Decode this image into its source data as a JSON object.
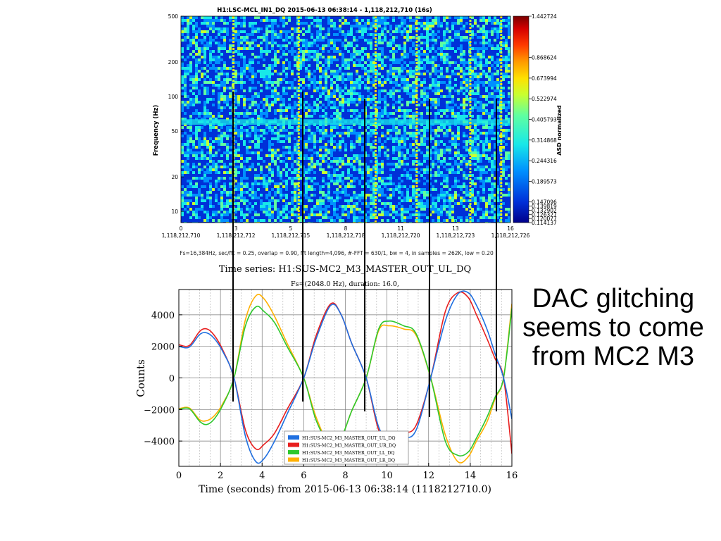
{
  "colors": {
    "series_ul": "#1f6fe0",
    "series_ur": "#e81e1e",
    "series_ll": "#2ec82e",
    "series_lr": "#ffb000",
    "marker_lines": "#000000"
  },
  "annotation": {
    "lines": [
      "DAC glitching",
      "seems to come",
      "from MC2 M3"
    ]
  },
  "chart_data": [
    {
      "type": "heatmap",
      "title": "H1:LSC-MCL_IN1_DQ 2015-06-13 06:38:14 - 1,118,212,710 (16s)",
      "ylabel": "Frequency (Hz)",
      "yscale": "log",
      "ylim": [
        8,
        500
      ],
      "y_ticks": [
        {
          "value": 10,
          "label": "10"
        },
        {
          "value": 20,
          "label": "20"
        },
        {
          "value": 50,
          "label": "50"
        },
        {
          "value": 100,
          "label": "100"
        },
        {
          "value": 200,
          "label": "200"
        },
        {
          "value": 500,
          "label": "500"
        }
      ],
      "xlim": [
        0,
        16
      ],
      "x_ticks": [
        {
          "value": 0,
          "top": "0",
          "bottom": "1,118,212,710"
        },
        {
          "value": 2.67,
          "top": "3",
          "bottom": "1,118,212,712"
        },
        {
          "value": 5.33,
          "top": "5",
          "bottom": "1,118,212,715"
        },
        {
          "value": 8,
          "top": "8",
          "bottom": "1,118,212,718"
        },
        {
          "value": 10.67,
          "top": "11",
          "bottom": "1,118,212,720"
        },
        {
          "value": 13.33,
          "top": "13",
          "bottom": "1,118,212,723"
        },
        {
          "value": 16,
          "top": "16",
          "bottom": "1,118,212,726"
        }
      ],
      "caption": "Fs=16,384Hz, sec/fft = 0.25, overlap = 0.90, fft length=4,096, #-FFT = 630/1, bw = 4, in samples = 262K, low = 0.20",
      "colorbar": {
        "label": "ASD normalized",
        "ticks": [
          "1.442724",
          "0.868624",
          "0.673994",
          "0.522974",
          "0.405793",
          "0.314868",
          "0.244316",
          "0.189573",
          "0.147096",
          "0.139819",
          "0.132902",
          "0.126327",
          "0.120077",
          "0.114137"
        ],
        "colors": [
          "#7a0000",
          "#d40000",
          "#ff3a00",
          "#ff9a00",
          "#ffe000",
          "#c8ff30",
          "#60ffa0",
          "#18e8e8",
          "#0090ff",
          "#0030d8",
          "#00008a"
        ]
      },
      "glitch_times": [
        2.55,
        5.72,
        9.45,
        11.45,
        14.05,
        15.55
      ]
    },
    {
      "type": "line",
      "title": "Time series: H1:SUS-MC2_M3_MASTER_OUT_UL_DQ",
      "subtitle": "Fs=(2048.0 Hz), duration: 16.0,",
      "xlabel": "Time (seconds) from 2015-06-13 06:38:14 (1118212710.0)",
      "ylabel": "Counts",
      "xlim": [
        0,
        16
      ],
      "ylim": [
        -5600,
        5600
      ],
      "x_ticks": [
        0,
        2,
        4,
        6,
        8,
        10,
        12,
        14,
        16
      ],
      "y_ticks": [
        -4000,
        -2000,
        0,
        2000,
        4000
      ],
      "grid": true,
      "legend_position": "bottom-center",
      "x": [
        0,
        0.5,
        1,
        1.35,
        1.7,
        2.1,
        2.65,
        3.2,
        3.7,
        4.1,
        4.6,
        5.2,
        6.0,
        6.6,
        7.3,
        7.8,
        8.3,
        9.0,
        9.6,
        10.1,
        10.8,
        11.4,
        12.1,
        12.8,
        13.4,
        13.9,
        14.3,
        14.8,
        15.2,
        15.6,
        16
      ],
      "series": [
        {
          "name": "H1:SUS-MC2_M3_MASTER_OUT_UL_DQ",
          "values": [
            2000,
            1950,
            2750,
            2850,
            2500,
            1700,
            0,
            -3700,
            -5300,
            -5100,
            -4000,
            -2300,
            0,
            2500,
            4600,
            4000,
            2200,
            0,
            -3100,
            -3800,
            -3800,
            -3300,
            0,
            3600,
            5300,
            5400,
            4600,
            3100,
            1500,
            0,
            -2600
          ]
        },
        {
          "name": "H1:SUS-MC2_M3_MASTER_OUT_UR_DQ",
          "values": [
            2100,
            2050,
            2950,
            3100,
            2700,
            1800,
            0,
            -3300,
            -4500,
            -4200,
            -3500,
            -2000,
            0,
            2700,
            4700,
            4000,
            2200,
            0,
            -3300,
            -3700,
            -3500,
            -3000,
            0,
            4200,
            5400,
            5100,
            4000,
            2500,
            1200,
            0,
            -4800
          ]
        },
        {
          "name": "H1:SUS-MC2_M3_MASTER_OUT_LL_DQ",
          "values": [
            -2000,
            -1950,
            -2750,
            -2950,
            -2600,
            -1750,
            0,
            3300,
            4500,
            4200,
            3500,
            2000,
            0,
            -2700,
            -4300,
            -3800,
            -2100,
            0,
            3100,
            3600,
            3300,
            2800,
            0,
            -4000,
            -4900,
            -4700,
            -3800,
            -2500,
            -1200,
            0,
            4400
          ]
        },
        {
          "name": "H1:SUS-MC2_M3_MASTER_OUT_LR_DQ",
          "values": [
            -1950,
            -1900,
            -2650,
            -2700,
            -2400,
            -1650,
            0,
            3700,
            5200,
            5000,
            3900,
            2200,
            0,
            -2500,
            -4400,
            -3800,
            -2100,
            0,
            3000,
            3300,
            3100,
            2700,
            0,
            -3600,
            -5300,
            -5000,
            -4000,
            -2800,
            -1300,
            0,
            4700
          ]
        }
      ]
    }
  ]
}
